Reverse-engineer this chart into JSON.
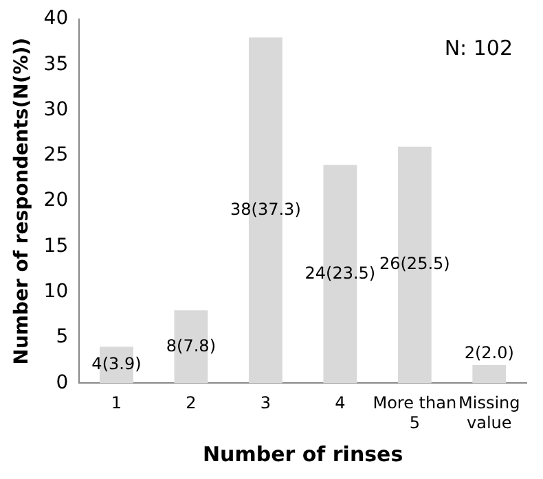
{
  "chart_data": {
    "type": "bar",
    "xlabel": "Number of rinses",
    "ylabel": "Number of respondents(N(%))",
    "categories": [
      "1",
      "2",
      "3",
      "4",
      "More than 5",
      "Missing value"
    ],
    "values": [
      4,
      8,
      38,
      24,
      26,
      2
    ],
    "value_labels": [
      "4(3.9)",
      "8(7.8)",
      "38(37.3)",
      "24(23.5)",
      "26(25.5)",
      "2(2.0)"
    ],
    "color": "#d9d9d9",
    "ylim": [
      0,
      40
    ],
    "yticks": [
      0,
      5,
      10,
      15,
      20,
      25,
      30,
      35,
      40
    ],
    "grid": false,
    "legend": false,
    "annotations": [
      "N: 102"
    ]
  }
}
